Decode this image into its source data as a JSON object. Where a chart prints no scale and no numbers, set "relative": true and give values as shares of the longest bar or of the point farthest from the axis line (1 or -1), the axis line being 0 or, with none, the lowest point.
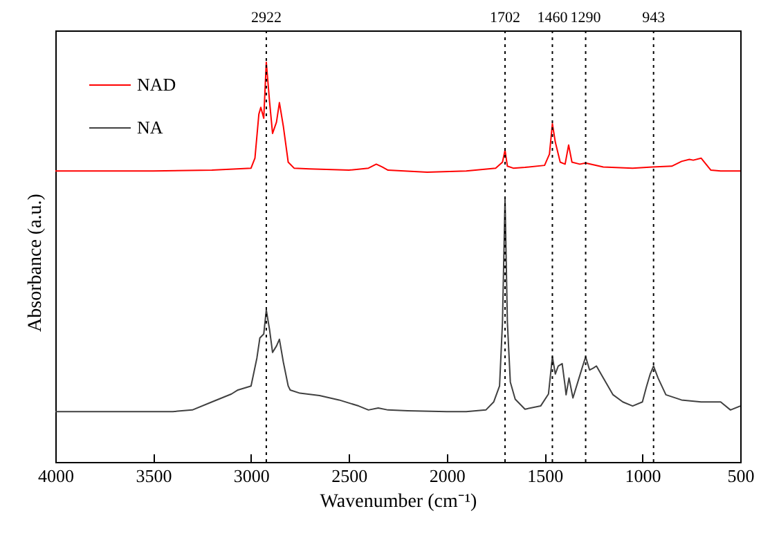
{
  "chart_data": {
    "type": "line",
    "xlabel": "Wavenumber (cm⁻¹)",
    "ylabel": "Absorbance (a.u.)",
    "relative": true,
    "legend": "top left",
    "line_style": "solid",
    "grid": false,
    "xlim": [
      4000,
      500
    ],
    "xticks": [
      4000,
      3500,
      3000,
      2500,
      2000,
      1500,
      1000,
      500
    ],
    "series": [
      {
        "name": "NAD",
        "color": "#ff0000",
        "x": [
          4000,
          3500,
          3200,
          3000,
          2980,
          2960,
          2950,
          2935,
          2922,
          2905,
          2890,
          2870,
          2855,
          2835,
          2810,
          2780,
          2700,
          2500,
          2400,
          2360,
          2330,
          2300,
          2100,
          1900,
          1750,
          1715,
          1702,
          1690,
          1660,
          1600,
          1500,
          1475,
          1460,
          1445,
          1420,
          1395,
          1377,
          1360,
          1320,
          1290,
          1200,
          1050,
          950,
          850,
          800,
          760,
          740,
          700,
          650,
          600,
          500
        ],
        "values": [
          0.728,
          0.728,
          0.73,
          0.735,
          0.76,
          0.87,
          0.887,
          0.86,
          1.0,
          0.9,
          0.822,
          0.85,
          0.899,
          0.84,
          0.75,
          0.735,
          0.733,
          0.73,
          0.735,
          0.745,
          0.738,
          0.73,
          0.725,
          0.728,
          0.735,
          0.75,
          0.78,
          0.74,
          0.735,
          0.737,
          0.742,
          0.77,
          0.846,
          0.8,
          0.75,
          0.745,
          0.793,
          0.75,
          0.745,
          0.748,
          0.738,
          0.735,
          0.738,
          0.74,
          0.752,
          0.757,
          0.755,
          0.76,
          0.73,
          0.728,
          0.728
        ]
      },
      {
        "name": "NA",
        "color": "#404040",
        "x": [
          4000,
          3700,
          3400,
          3300,
          3200,
          3100,
          3067,
          3000,
          2970,
          2955,
          2935,
          2922,
          2905,
          2890,
          2870,
          2855,
          2835,
          2810,
          2800,
          2750,
          2650,
          2550,
          2450,
          2400,
          2350,
          2300,
          2200,
          2000,
          1900,
          1800,
          1760,
          1730,
          1715,
          1702,
          1690,
          1675,
          1650,
          1600,
          1520,
          1480,
          1460,
          1445,
          1430,
          1410,
          1395,
          1390,
          1375,
          1355,
          1330,
          1305,
          1290,
          1270,
          1250,
          1235,
          1200,
          1150,
          1100,
          1050,
          1000,
          980,
          960,
          943,
          920,
          880,
          800,
          700,
          600,
          550,
          500
        ],
        "values": [
          0.126,
          0.126,
          0.126,
          0.13,
          0.15,
          0.17,
          0.18,
          0.19,
          0.26,
          0.31,
          0.32,
          0.38,
          0.33,
          0.274,
          0.29,
          0.307,
          0.25,
          0.19,
          0.18,
          0.172,
          0.166,
          0.155,
          0.14,
          0.13,
          0.135,
          0.13,
          0.128,
          0.126,
          0.126,
          0.13,
          0.15,
          0.19,
          0.35,
          0.659,
          0.35,
          0.2,
          0.157,
          0.132,
          0.14,
          0.17,
          0.263,
          0.22,
          0.24,
          0.246,
          0.19,
          0.168,
          0.21,
          0.16,
          0.2,
          0.24,
          0.263,
          0.23,
          0.235,
          0.24,
          0.21,
          0.168,
          0.15,
          0.14,
          0.15,
          0.187,
          0.22,
          0.24,
          0.21,
          0.168,
          0.155,
          0.15,
          0.15,
          0.13,
          0.14
        ]
      }
    ],
    "ref_lines": [
      {
        "axis": "x",
        "value": 2922,
        "label": "2922",
        "color": "#000000",
        "line_style": "dotted"
      },
      {
        "axis": "x",
        "value": 1702,
        "label": "1702",
        "color": "#000000",
        "line_style": "dotted"
      },
      {
        "axis": "x",
        "value": 1460,
        "label": "1460",
        "color": "#000000",
        "line_style": "dotted"
      },
      {
        "axis": "x",
        "value": 1290,
        "label": "1290",
        "color": "#000000",
        "line_style": "dotted"
      },
      {
        "axis": "x",
        "value": 943,
        "label": "943",
        "color": "#000000",
        "line_style": "dotted"
      }
    ]
  }
}
